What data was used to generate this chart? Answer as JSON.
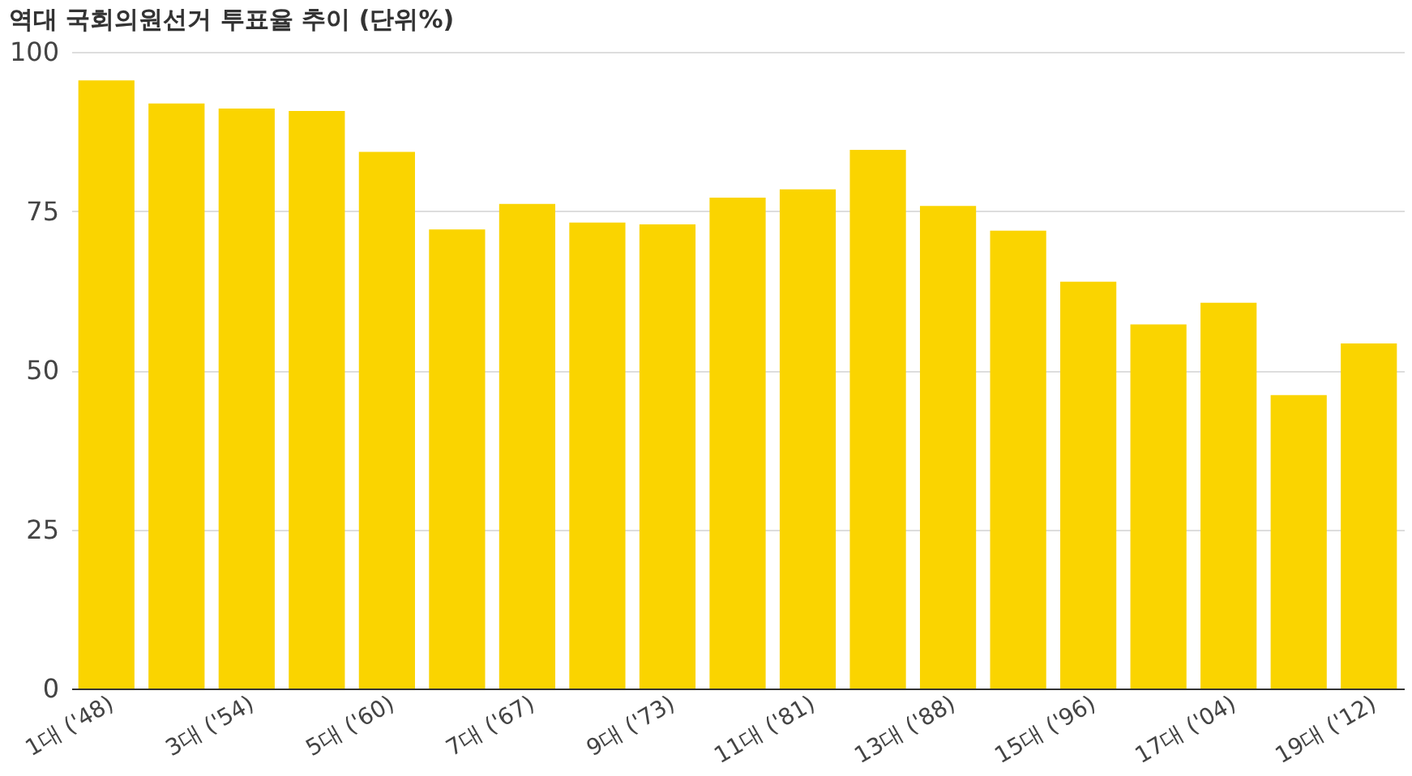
{
  "chart_data": {
    "type": "bar",
    "title": "역대 국회의원선거 투표율 추이 (단위%)",
    "categories": [
      "1대 ('48)",
      null,
      "3대 ('54)",
      null,
      "5대 ('60)",
      null,
      "7대 ('67)",
      null,
      "9대 ('73)",
      null,
      "11대 ('81)",
      null,
      "13대 ('88)",
      null,
      "15대 ('96)",
      null,
      "17대 ('04)",
      null,
      "19대 ('12)"
    ],
    "values": [
      95.5,
      91.9,
      91.1,
      90.7,
      84.3,
      72.1,
      76.1,
      73.2,
      72.9,
      77.1,
      78.4,
      84.6,
      75.8,
      71.9,
      63.9,
      57.2,
      60.6,
      46.1,
      54.2
    ],
    "color": "#fad400",
    "ylim": [
      0,
      100
    ],
    "yticks": [
      0,
      25,
      50,
      75,
      100
    ],
    "grid": "y"
  }
}
